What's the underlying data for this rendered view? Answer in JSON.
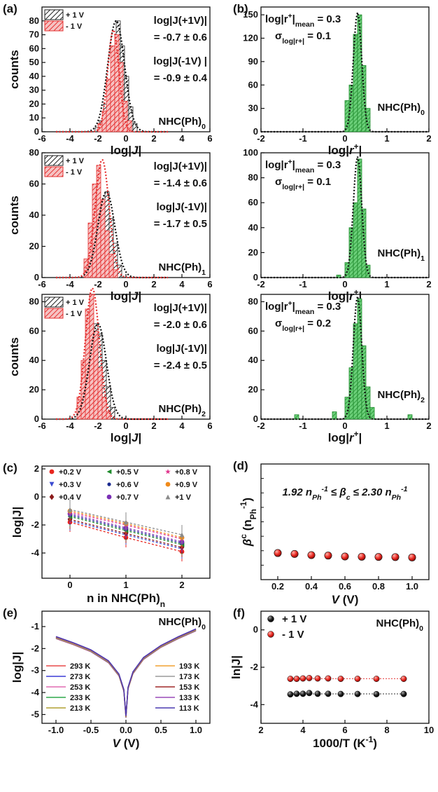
{
  "colors": {
    "black_hist": "#222222",
    "red_hist": "#e53030",
    "green_hist": "#2fa83c",
    "red_marker": "#e8261f",
    "black_marker": "#111111"
  },
  "chart_data": [
    {
      "id": "a0",
      "panel_label": "(a)",
      "type": "bar",
      "xlabel": "log|J|",
      "ylabel": "counts",
      "xlim": [
        -6,
        6
      ],
      "ylim": [
        0,
        90
      ],
      "xticks": [
        -6,
        -4,
        -2,
        0,
        2,
        4,
        6
      ],
      "yticks": [
        0,
        10,
        20,
        30,
        40,
        50,
        60,
        70,
        80
      ],
      "legend": [
        "+ 1 V",
        "- 1 V"
      ],
      "annotations": [
        "log|J(+1V)|",
        "= -0.7 ± 0.6",
        "log|J(-1V) |",
        "= -0.9 ± 0.4"
      ],
      "tag": "NHC(Ph)0",
      "series": [
        {
          "name": "+ 1 V",
          "bins": [
            -2.2,
            -1.9,
            -1.6,
            -1.3,
            -1.0,
            -0.7,
            -0.4,
            -0.1,
            0.2,
            0.5
          ],
          "values": [
            3,
            8,
            20,
            35,
            55,
            80,
            62,
            40,
            18,
            6
          ]
        },
        {
          "name": "- 1 V",
          "bins": [
            -2.0,
            -1.7,
            -1.4,
            -1.1,
            -0.8,
            -0.5,
            -0.2,
            0.1
          ],
          "values": [
            6,
            15,
            38,
            62,
            70,
            50,
            22,
            8
          ]
        }
      ]
    },
    {
      "id": "b0",
      "panel_label": "(b)",
      "type": "bar",
      "xlabel": "log|r+|",
      "xlim": [
        -2,
        2
      ],
      "ylim": [
        0,
        160
      ],
      "xticks": [
        -2,
        -1,
        0,
        1,
        2
      ],
      "yticks": [
        0,
        30,
        60,
        90,
        120,
        150
      ],
      "annotations": [
        "log|r+|mean = 0.3",
        "σlog|r+| = 0.1"
      ],
      "tag": "NHC(Ph)0",
      "series": [
        {
          "name": "",
          "bins": [
            0.0,
            0.1,
            0.2,
            0.3,
            0.4,
            0.5
          ],
          "values": [
            40,
            60,
            125,
            150,
            85,
            30
          ]
        }
      ]
    },
    {
      "id": "a1",
      "type": "bar",
      "xlabel": "log|J|",
      "ylabel": "counts",
      "xlim": [
        -6,
        6
      ],
      "ylim": [
        0,
        80
      ],
      "xticks": [
        -6,
        -4,
        -2,
        0,
        2,
        4,
        6
      ],
      "yticks": [
        0,
        20,
        40,
        60,
        80
      ],
      "legend": [
        "+ 1 V",
        "- 1 V"
      ],
      "annotations": [
        "log|J(+1V)|",
        "= -1.4 ± 0.6",
        "log|J(-1V)|",
        "= -1.7 ± 0.5"
      ],
      "tag": "NHC(Ph)1",
      "series": [
        {
          "name": "+ 1 V",
          "bins": [
            -3.0,
            -2.7,
            -2.4,
            -2.1,
            -1.8,
            -1.5,
            -1.2,
            -0.9,
            -0.6
          ],
          "values": [
            6,
            14,
            28,
            40,
            48,
            55,
            38,
            22,
            8
          ]
        },
        {
          "name": "- 1 V",
          "bins": [
            -3.0,
            -2.7,
            -2.4,
            -2.1,
            -1.8,
            -1.5,
            -1.2,
            -0.9
          ],
          "values": [
            12,
            35,
            60,
            72,
            50,
            30,
            15,
            5
          ]
        }
      ]
    },
    {
      "id": "b1",
      "type": "bar",
      "xlabel": "log|r+|",
      "xlim": [
        -2,
        2
      ],
      "ylim": [
        0,
        100
      ],
      "xticks": [
        -2,
        -1,
        0,
        1,
        2
      ],
      "yticks": [
        0,
        20,
        40,
        60,
        80,
        100
      ],
      "annotations": [
        "log|r+|mean = 0.3",
        "σlog|r+| = 0.1"
      ],
      "tag": "NHC(Ph)1",
      "series": [
        {
          "name": "",
          "bins": [
            -0.2,
            0.0,
            0.1,
            0.2,
            0.3,
            0.4,
            0.5
          ],
          "values": [
            2,
            12,
            40,
            60,
            95,
            55,
            10
          ]
        }
      ]
    },
    {
      "id": "a2",
      "type": "bar",
      "xlabel": "log|J|",
      "ylabel": "counts",
      "xlim": [
        -6,
        6
      ],
      "ylim": [
        0,
        85
      ],
      "xticks": [
        -6,
        -4,
        -2,
        0,
        2,
        4,
        6
      ],
      "yticks": [
        0,
        20,
        40,
        60,
        80
      ],
      "legend": [
        "+ 1 V",
        "- 1 V"
      ],
      "annotations": [
        "log|J(+1V)|",
        "= -2.0 ± 0.6",
        "log|J(-1V)|",
        "= -2.4 ± 0.5"
      ],
      "tag": "NHC(Ph)2",
      "series": [
        {
          "name": "+ 1 V",
          "bins": [
            -3.5,
            -3.2,
            -2.9,
            -2.6,
            -2.3,
            -2.0,
            -1.7,
            -1.4,
            -1.1
          ],
          "values": [
            8,
            20,
            35,
            55,
            65,
            58,
            40,
            22,
            8
          ]
        },
        {
          "name": "- 1 V",
          "bins": [
            -3.5,
            -3.2,
            -2.9,
            -2.6,
            -2.3,
            -2.0,
            -1.7,
            -1.4
          ],
          "values": [
            15,
            40,
            75,
            85,
            60,
            35,
            15,
            5
          ]
        }
      ]
    },
    {
      "id": "b2",
      "type": "bar",
      "xlabel": "log|r+|",
      "xlim": [
        -2,
        2
      ],
      "ylim": [
        0,
        85
      ],
      "xticks": [
        -2,
        -1,
        0,
        1,
        2
      ],
      "yticks": [
        0,
        20,
        40,
        60,
        80
      ],
      "annotations": [
        "log|r+|mean = 0.3",
        "σlog|r+| = 0.2"
      ],
      "tag": "NHC(Ph)2",
      "series": [
        {
          "name": "",
          "bins": [
            -1.2,
            -0.3,
            0.0,
            0.1,
            0.2,
            0.3,
            0.4,
            0.5,
            0.6,
            1.5
          ],
          "values": [
            3,
            5,
            15,
            35,
            65,
            82,
            50,
            22,
            8,
            3
          ]
        }
      ]
    },
    {
      "id": "c",
      "panel_label": "(c)",
      "type": "scatter",
      "xlabel": "n in NHC(Ph)n",
      "ylabel": "log|J|",
      "xlim": [
        -0.5,
        2.5
      ],
      "ylim": [
        -5.8,
        2.2
      ],
      "xticks": [
        0,
        1,
        2
      ],
      "yticks": [
        -4,
        -2,
        0,
        2
      ],
      "x": [
        0,
        1,
        2
      ],
      "series": [
        {
          "name": "+0.2 V",
          "values": [
            -1.8,
            -2.9,
            -3.9
          ],
          "color": "#e8261f",
          "marker": "circle"
        },
        {
          "name": "+0.3 V",
          "values": [
            -1.7,
            -2.7,
            -3.7
          ],
          "color": "#3b4bd1",
          "marker": "tri-down"
        },
        {
          "name": "+0.4 V",
          "values": [
            -1.6,
            -2.6,
            -3.6
          ],
          "color": "#8b1a1a",
          "marker": "diamond"
        },
        {
          "name": "+0.5 V",
          "values": [
            -1.4,
            -2.4,
            -3.4
          ],
          "color": "#1d8a2a",
          "marker": "tri-left"
        },
        {
          "name": "+0.6 V",
          "values": [
            -1.3,
            -2.3,
            -3.3
          ],
          "color": "#1a2a8f",
          "marker": "small-circle"
        },
        {
          "name": "+0.7 V",
          "values": [
            -1.2,
            -2.2,
            -3.2
          ],
          "color": "#7a2fb5",
          "marker": "hexagon"
        },
        {
          "name": "+0.8 V",
          "values": [
            -1.1,
            -2.0,
            -3.0
          ],
          "color": "#e0308a",
          "marker": "star"
        },
        {
          "name": "+0.9 V",
          "values": [
            -1.0,
            -1.9,
            -2.9
          ],
          "color": "#f08a1a",
          "marker": "circle"
        },
        {
          "name": "+1 V",
          "values": [
            -0.9,
            -1.8,
            -2.7
          ],
          "color": "#8a8a8a",
          "marker": "tri-up"
        }
      ]
    },
    {
      "id": "d",
      "panel_label": "(d)",
      "type": "scatter",
      "xlabel": "V (V)",
      "ylabel": "βc (nPh-1)",
      "xlim": [
        0.1,
        1.1
      ],
      "ylim": [
        0,
        10
      ],
      "xticks": [
        0.2,
        0.4,
        0.6,
        0.8,
        1.0
      ],
      "yticks": [],
      "annotation": "1.92 nPh-1 ≤ βc ≤ 2.30 nPh-1",
      "x": [
        0.2,
        0.3,
        0.4,
        0.5,
        0.6,
        0.7,
        0.8,
        0.9,
        1.0
      ],
      "series": [
        {
          "name": "",
          "values": [
            2.3,
            2.22,
            2.12,
            2.08,
            2.0,
            1.98,
            1.96,
            1.95,
            1.92
          ]
        }
      ]
    },
    {
      "id": "e",
      "panel_label": "(e)",
      "type": "line",
      "xlabel": "V (V)",
      "ylabel": "log|J|",
      "xlim": [
        -1.2,
        1.2
      ],
      "ylim": [
        -5.4,
        -0.3
      ],
      "xticks": [
        -1.0,
        -0.5,
        0.0,
        0.5,
        1.0
      ],
      "yticks": [
        -5,
        -4,
        -3,
        -2,
        -1
      ],
      "tag": "NHC(Ph)0",
      "series": [
        {
          "name": "293 K",
          "color": "#e84a4a"
        },
        {
          "name": "273 K",
          "color": "#3b3bd6"
        },
        {
          "name": "253 K",
          "color": "#e06ab0"
        },
        {
          "name": "233 K",
          "color": "#2fa84a"
        },
        {
          "name": "213 K",
          "color": "#b0a030"
        },
        {
          "name": "193 K",
          "color": "#f0a030"
        },
        {
          "name": "173 K",
          "color": "#9a9a9a"
        },
        {
          "name": "153 K",
          "color": "#a02828"
        },
        {
          "name": "133 K",
          "color": "#9a4ab8"
        },
        {
          "name": "113 K",
          "color": "#4a3ab0"
        }
      ],
      "curve": {
        "x": [
          -1.0,
          -0.75,
          -0.5,
          -0.25,
          -0.1,
          -0.03,
          0.0,
          0.03,
          0.1,
          0.25,
          0.5,
          0.75,
          1.0
        ],
        "y": [
          -1.5,
          -1.78,
          -2.1,
          -2.6,
          -3.2,
          -3.9,
          -5.1,
          -3.8,
          -3.1,
          -2.45,
          -1.9,
          -1.5,
          -1.15
        ]
      }
    },
    {
      "id": "f",
      "panel_label": "(f)",
      "type": "scatter",
      "xlabel": "1000/T (K-1)",
      "ylabel": "ln|J|",
      "xlim": [
        2,
        10
      ],
      "ylim": [
        -5,
        1
      ],
      "xticks": [
        2,
        4,
        6,
        8,
        10
      ],
      "yticks": [
        0,
        -2,
        -4
      ],
      "tag": "NHC(Ph)0",
      "x": [
        3.4,
        3.7,
        4.0,
        4.3,
        4.7,
        5.2,
        5.8,
        6.6,
        7.5,
        8.8
      ],
      "series": [
        {
          "name": "+ 1 V",
          "values": [
            -3.45,
            -3.42,
            -3.42,
            -3.38,
            -3.42,
            -3.42,
            -3.43,
            -3.43,
            -3.44,
            -3.43
          ]
        },
        {
          "name": "- 1 V",
          "values": [
            -2.62,
            -2.62,
            -2.6,
            -2.58,
            -2.6,
            -2.6,
            -2.62,
            -2.62,
            -2.62,
            -2.62
          ]
        }
      ]
    }
  ]
}
